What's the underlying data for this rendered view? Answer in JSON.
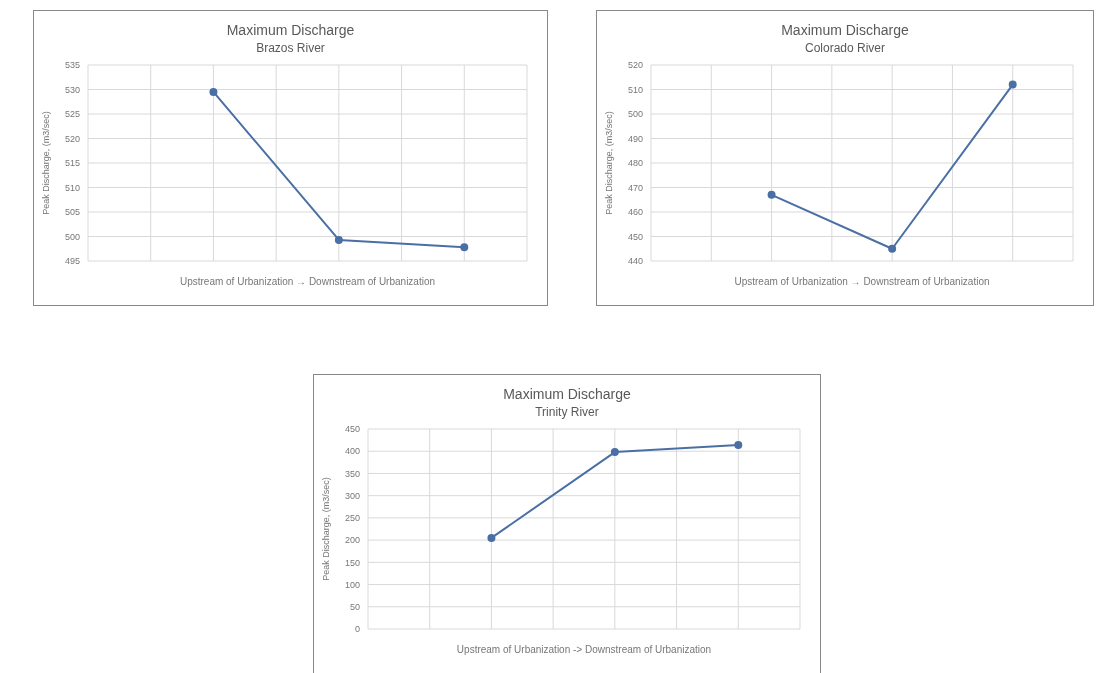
{
  "chart_data": [
    {
      "type": "line",
      "title": "Maximum Discharge",
      "subtitle": "Brazos River",
      "xlabel": "Upstream of Urbanization → Downstream of Urbanization",
      "ylabel": "Peak Discharge, (m3/sec)",
      "categories": [
        null,
        null,
        null
      ],
      "values": [
        529.5,
        499.3,
        497.8
      ],
      "color": "#4a6fa5",
      "ylim": [
        495,
        535
      ],
      "yticks": [
        495,
        500,
        505,
        510,
        515,
        520,
        525,
        530,
        535
      ],
      "tick_labels": "y",
      "grid": true,
      "marker": "circle",
      "line_style": "solid"
    },
    {
      "type": "line",
      "title": "Maximum Discharge",
      "subtitle": "Colorado River",
      "xlabel": "Upstream of Urbanization → Downstream of Urbanization",
      "ylabel": "Peak Discharge, (m3/sec)",
      "categories": [
        null,
        null,
        null
      ],
      "values": [
        467,
        445,
        512
      ],
      "color": "#4a6fa5",
      "ylim": [
        440,
        520
      ],
      "yticks": [
        440,
        450,
        460,
        470,
        480,
        490,
        500,
        510,
        520
      ],
      "tick_labels": "y",
      "grid": true,
      "marker": "circle",
      "line_style": "solid"
    },
    {
      "type": "line",
      "title": "Maximum Discharge",
      "subtitle": "Trinity River",
      "xlabel": "Upstream of Urbanization -> Downstream of Urbanization",
      "ylabel": "Peak Discharge, (m3/sec)",
      "categories": [
        null,
        null,
        null
      ],
      "values": [
        205,
        398,
        414
      ],
      "color": "#4a6fa5",
      "ylim": [
        0,
        450
      ],
      "yticks": [
        0,
        50,
        100,
        150,
        200,
        250,
        300,
        350,
        400,
        450
      ],
      "tick_labels": "y",
      "grid": true,
      "marker": "circle",
      "line_style": "solid"
    }
  ]
}
